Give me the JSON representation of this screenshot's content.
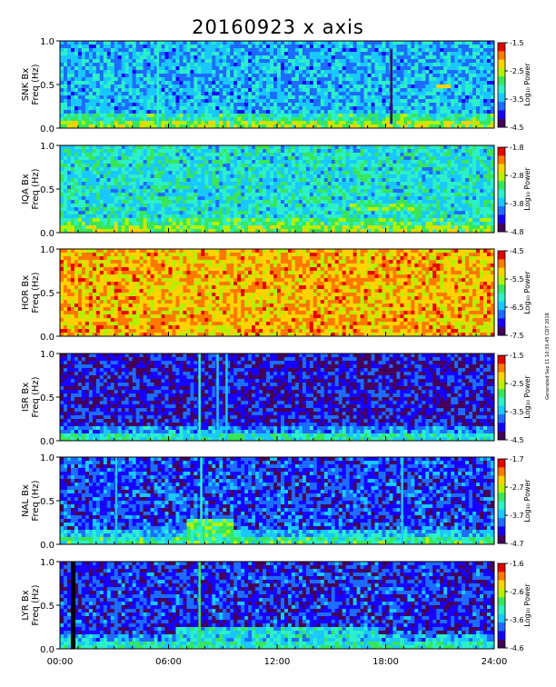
{
  "title": "20160923 x axis",
  "side_note": "Generated Sep 11 10:33:45 CDT 2018",
  "colors": [
    "#44005a",
    "#1800ff",
    "#1d6cff",
    "#19c8ff",
    "#2cf0c8",
    "#37e65a",
    "#b4f000",
    "#ffd200",
    "#ff7800",
    "#e60000"
  ],
  "chart_data": [
    {
      "type": "heatmap",
      "station": "SNK",
      "ylabel": "SNK Bx Freq (Hz)",
      "colorbar_label": "Log₁₀ Power",
      "colorbar_ticks": [
        "-1.5",
        "-2.5",
        "-3.5",
        "-4.5"
      ],
      "clim": [
        -4.5,
        -1.5
      ],
      "ylim": [
        0,
        1.0
      ],
      "y_ticks": [
        "0.0",
        "0.5",
        "1.0"
      ],
      "background_level": 0.33,
      "low_freq_level": 0.62,
      "features": [
        {
          "kind": "vertical",
          "time_h": 18.3,
          "freq": [
            0.05,
            0.9
          ],
          "level": 0.0
        },
        {
          "kind": "vertical",
          "time_h": 5.4,
          "freq": [
            0.0,
            1.0
          ],
          "level": 0.48
        },
        {
          "kind": "band",
          "time_h": [
            20.8,
            21.6
          ],
          "freq": [
            0.45,
            0.52
          ],
          "level": 0.62
        }
      ]
    },
    {
      "type": "heatmap",
      "station": "IQA",
      "ylabel": "IQA Bx Freq (Hz)",
      "colorbar_label": "Log₁₀ Power",
      "colorbar_ticks": [
        "-1.8",
        "-2.8",
        "-3.8",
        "-4.8"
      ],
      "clim": [
        -4.8,
        -1.8
      ],
      "ylim": [
        0,
        1.0
      ],
      "y_ticks": [
        "0.0",
        "0.5",
        "1.0"
      ],
      "background_level": 0.42,
      "low_freq_level": 0.62,
      "features": [
        {
          "kind": "band",
          "time_h": [
            16.0,
            19.5
          ],
          "freq": [
            0.25,
            0.35
          ],
          "level": 0.55
        }
      ]
    },
    {
      "type": "heatmap",
      "station": "HOR",
      "ylabel": "HOR Bx Freq (Hz)",
      "colorbar_label": "Log₁₀ Power",
      "colorbar_ticks": [
        "-4.5",
        "-5.5",
        "-6.5",
        "-7.5"
      ],
      "clim": [
        -7.5,
        -4.5
      ],
      "ylim": [
        0,
        1.0
      ],
      "y_ticks": [
        "0.0",
        "0.5",
        "1.0"
      ],
      "background_level": 0.78,
      "low_freq_level": 0.78,
      "features": []
    },
    {
      "type": "heatmap",
      "station": "ISR",
      "ylabel": "ISR Bx Freq (Hz)",
      "colorbar_label": "Log₁₀ Power",
      "colorbar_ticks": [
        "-1.5",
        "-2.5",
        "-3.5",
        "-4.5"
      ],
      "clim": [
        -4.5,
        -1.5
      ],
      "ylim": [
        0,
        1.0
      ],
      "y_ticks": [
        "0.0",
        "0.5",
        "1.0"
      ],
      "background_level": 0.14,
      "low_freq_level": 0.45,
      "features": [
        {
          "kind": "vertical",
          "time_h": 7.7,
          "freq": [
            0.0,
            1.0
          ],
          "level": 0.4
        },
        {
          "kind": "vertical",
          "time_h": 8.7,
          "freq": [
            0.0,
            1.0
          ],
          "level": 0.32
        },
        {
          "kind": "vertical",
          "time_h": 9.2,
          "freq": [
            0.0,
            1.0
          ],
          "level": 0.3
        }
      ]
    },
    {
      "type": "heatmap",
      "station": "NAL",
      "ylabel": "NAL Bx Freq (Hz)",
      "colorbar_label": "Log₁₀ Power",
      "colorbar_ticks": [
        "-1.7",
        "-2.7",
        "-3.7",
        "-4.7"
      ],
      "clim": [
        -4.7,
        -1.7
      ],
      "ylim": [
        0,
        1.0
      ],
      "y_ticks": [
        "0.0",
        "0.5",
        "1.0"
      ],
      "background_level": 0.2,
      "low_freq_level": 0.5,
      "features": [
        {
          "kind": "vertical",
          "time_h": 3.1,
          "freq": [
            0.0,
            1.0
          ],
          "level": 0.34
        },
        {
          "kind": "vertical",
          "time_h": 7.8,
          "freq": [
            0.0,
            1.0
          ],
          "level": 0.45
        },
        {
          "kind": "vertical",
          "time_h": 18.9,
          "freq": [
            0.0,
            1.0
          ],
          "level": 0.34
        },
        {
          "kind": "band",
          "time_h": [
            7.0,
            9.5
          ],
          "freq": [
            0.1,
            0.3
          ],
          "level": 0.55
        }
      ]
    },
    {
      "type": "heatmap",
      "station": "LYR",
      "ylabel": "LYR Bx Freq (Hz)",
      "colorbar_label": "Log₁₀ Power",
      "colorbar_ticks": [
        "-1.6",
        "-2.6",
        "-3.6",
        "-4.6"
      ],
      "clim": [
        -4.6,
        -1.6
      ],
      "ylim": [
        0,
        1.0
      ],
      "y_ticks": [
        "0.0",
        "0.5",
        "1.0"
      ],
      "background_level": 0.18,
      "low_freq_level": 0.45,
      "features": [
        {
          "kind": "gap",
          "time_h": [
            0.6,
            0.85
          ],
          "freq": [
            0.0,
            1.0
          ],
          "level": 0.0
        },
        {
          "kind": "vertical",
          "time_h": 7.7,
          "freq": [
            0.0,
            1.0
          ],
          "level": 0.5
        },
        {
          "kind": "band",
          "time_h": [
            6.5,
            17.5
          ],
          "freq": [
            0.1,
            0.25
          ],
          "level": 0.4
        }
      ]
    }
  ],
  "x_axis": {
    "xlim": [
      "00:00",
      "24:00"
    ],
    "tick_labels": [
      "00:00",
      "06:00",
      "12:00",
      "18:00",
      "24:00"
    ]
  }
}
